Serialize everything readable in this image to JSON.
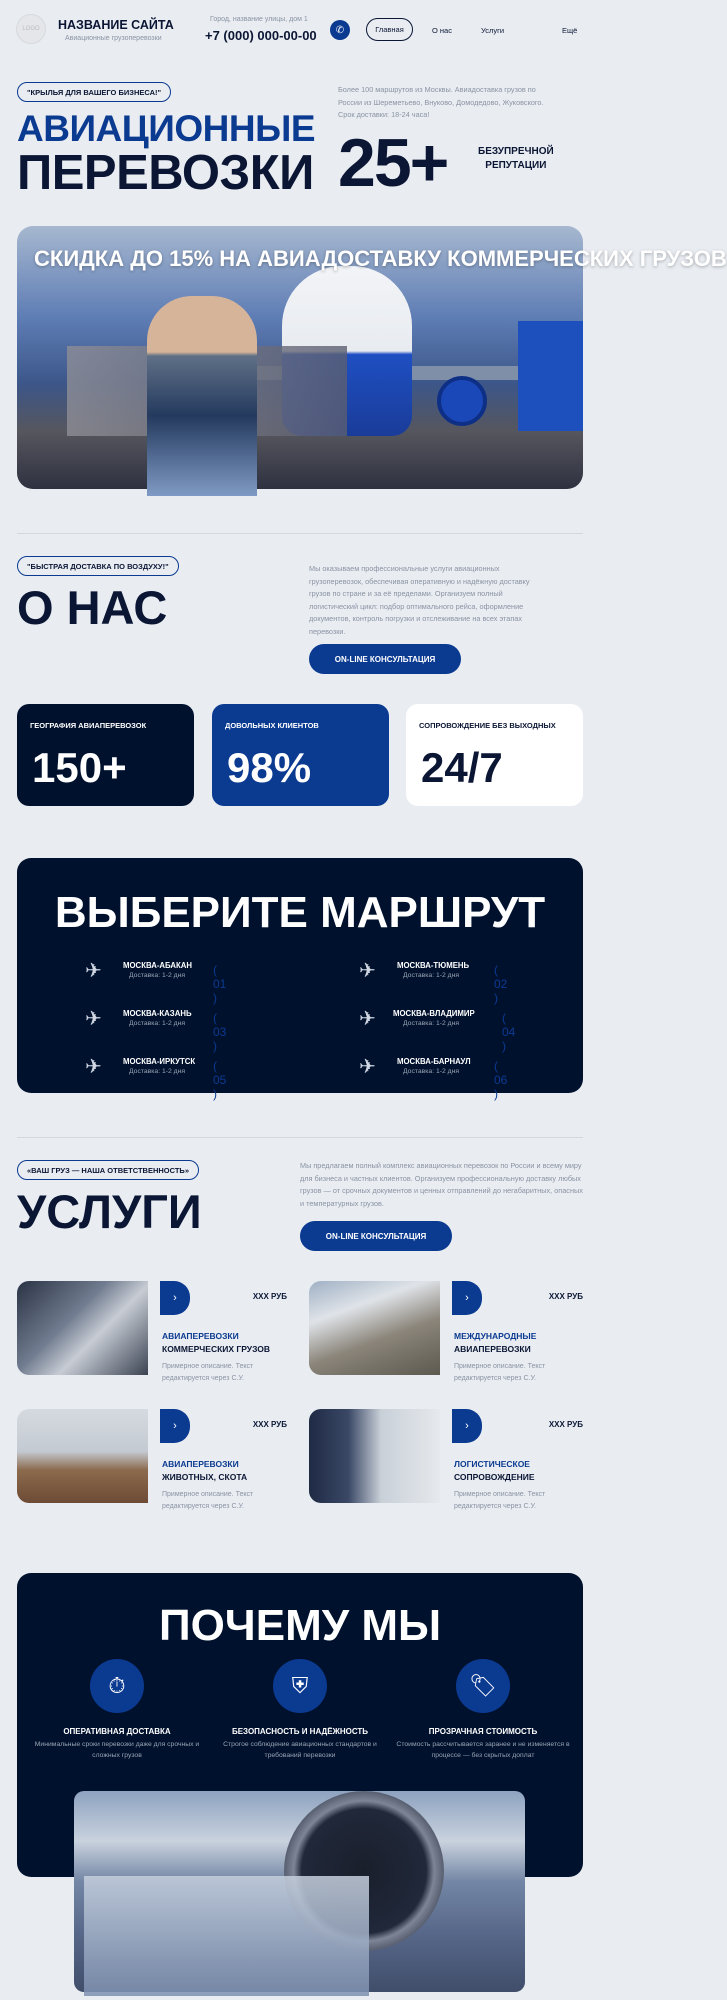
{
  "colors": {
    "background": "#e9edf2",
    "navy": "#00112e",
    "accent": "#0b3a91"
  },
  "header": {
    "logo": "LOGO",
    "site_title": "НАЗВАНИЕ САЙТА",
    "site_subtitle": "Авиационные грузоперевозки",
    "address": "Город, название улицы, дом 1",
    "phone": "+7 (000) 000-00-00",
    "phone_icon": "phone-icon",
    "nav": [
      "Главная",
      "О нас",
      "Услуги",
      "Ещё"
    ]
  },
  "hero": {
    "badge": "\"КРЫЛЬЯ ДЛЯ ВАШЕГО БИЗНЕСА!\"",
    "title_line1": "АВИАЦИОННЫЕ",
    "title_line2": "ПЕРЕВОЗКИ",
    "description": "Более 100 маршрутов из Москвы. Авиадоставка грузов по России из Шереметьево, Внуково, Домодедово, Жуковского. Срок доставки: 18-24 часа!",
    "stat_value": "25+",
    "stat_label_1": "БЕЗУПРЕЧНОЙ",
    "stat_label_2": "РЕПУТАЦИИ",
    "banner_text": "СКИДКА ДО 15% НА АВИАДОСТАВКУ КОММЕРЧЕСКИХ ГРУЗОВ"
  },
  "about": {
    "badge": "\"БЫСТРАЯ ДОСТАВКА ПО ВОЗДУХУ!\"",
    "title": "О НАС",
    "description": "Мы оказываем профессиональные услуги авиационных грузоперевозок, обеспечивая оперативную и надёжную доставку грузов по стране и за её пределами. Организуем полный логистический цикл: подбор оптимального рейса, оформление документов, контроль погрузки и отслеживание на всех этапах перевозки.",
    "button": "ON-LINE КОНСУЛЬТАЦИЯ",
    "stats": [
      {
        "label": "ГЕОГРАФИЯ АВИАПЕРЕВОЗОК",
        "value": "150+"
      },
      {
        "label": "ДОВОЛЬНЫХ КЛИЕНТОВ",
        "value": "98%"
      },
      {
        "label": "СОПРОВОЖДЕНИЕ БЕЗ ВЫХОДНЫХ",
        "value": "24/7"
      }
    ]
  },
  "routes": {
    "title": "ВЫБЕРИТЕ МАРШРУТ",
    "items": [
      {
        "name": "МОСКВА-АБАКАН",
        "delivery": "Доставка: 1-2 дня",
        "num": "( 01 )"
      },
      {
        "name": "МОСКВА-ТЮМЕНЬ",
        "delivery": "Доставка: 1-2 дня",
        "num": "( 02 )"
      },
      {
        "name": "МОСКВА-КАЗАНЬ",
        "delivery": "Доставка: 1-2 дня",
        "num": "( 03 )"
      },
      {
        "name": "МОСКВА-ВЛАДИМИР",
        "delivery": "Доставка: 1-2 дня",
        "num": "( 04 )"
      },
      {
        "name": "МОСКВА-ИРКУТСК",
        "delivery": "Доставка: 1-2 дня",
        "num": "( 05 )"
      },
      {
        "name": "МОСКВА-БАРНАУЛ",
        "delivery": "Доставка: 1-2 дня",
        "num": "( 06 )"
      }
    ]
  },
  "services": {
    "badge": "«ВАШ ГРУЗ — НАША ОТВЕТСТВЕННОСТЬ»",
    "title": "УСЛУГИ",
    "description": "Мы предлагаем полный комплекс авиационных перевозок по России и всему миру для бизнеса и частных клиентов. Организуем профессиональную доставку любых грузов — от срочных документов и ценных отправлений до негабаритных, опасных и температурных грузов.",
    "button": "ON-LINE КОНСУЛЬТАЦИЯ",
    "items": [
      {
        "title1": "АВИАПЕРЕВОЗКИ",
        "title2": "КОММЕРЧЕСКИХ ГРУЗОВ",
        "desc": "Примерное описание. Текст редактируется через С.У.",
        "price": "XXX РУБ"
      },
      {
        "title1": "МЕЖДУНАРОДНЫЕ",
        "title2": "АВИАПЕРЕВОЗКИ",
        "desc": "Примерное описание. Текст редактируется через С.У.",
        "price": "XXX РУБ"
      },
      {
        "title1": "АВИАПЕРЕВОЗКИ",
        "title2": "ЖИВОТНЫХ, СКОТА",
        "desc": "Примерное описание. Текст редактируется через С.У.",
        "price": "XXX РУБ"
      },
      {
        "title1": "ЛОГИСТИЧЕСКОЕ",
        "title2": "СОПРОВОЖДЕНИЕ",
        "desc": "Примерное описание. Текст редактируется через С.У.",
        "price": "XXX РУБ"
      }
    ]
  },
  "why": {
    "title": "ПОЧЕМУ МЫ",
    "items": [
      {
        "icon": "stopwatch-icon",
        "title": "ОПЕРАТИВНАЯ ДОСТАВКА",
        "desc": "Минимальные сроки перевозки даже для срочных и сложных грузов"
      },
      {
        "icon": "shield-box-icon",
        "title": "БЕЗОПАСНОСТЬ И НАДЁЖНОСТЬ",
        "desc": "Строгое соблюдение авиационных стандартов и требований перевозки"
      },
      {
        "icon": "price-tag-icon",
        "title": "ПРОЗРАЧНАЯ СТОИМОСТЬ",
        "desc": "Стоимость рассчитывается заранее и не изменяется в процессе — без скрытых доплат"
      }
    ]
  }
}
